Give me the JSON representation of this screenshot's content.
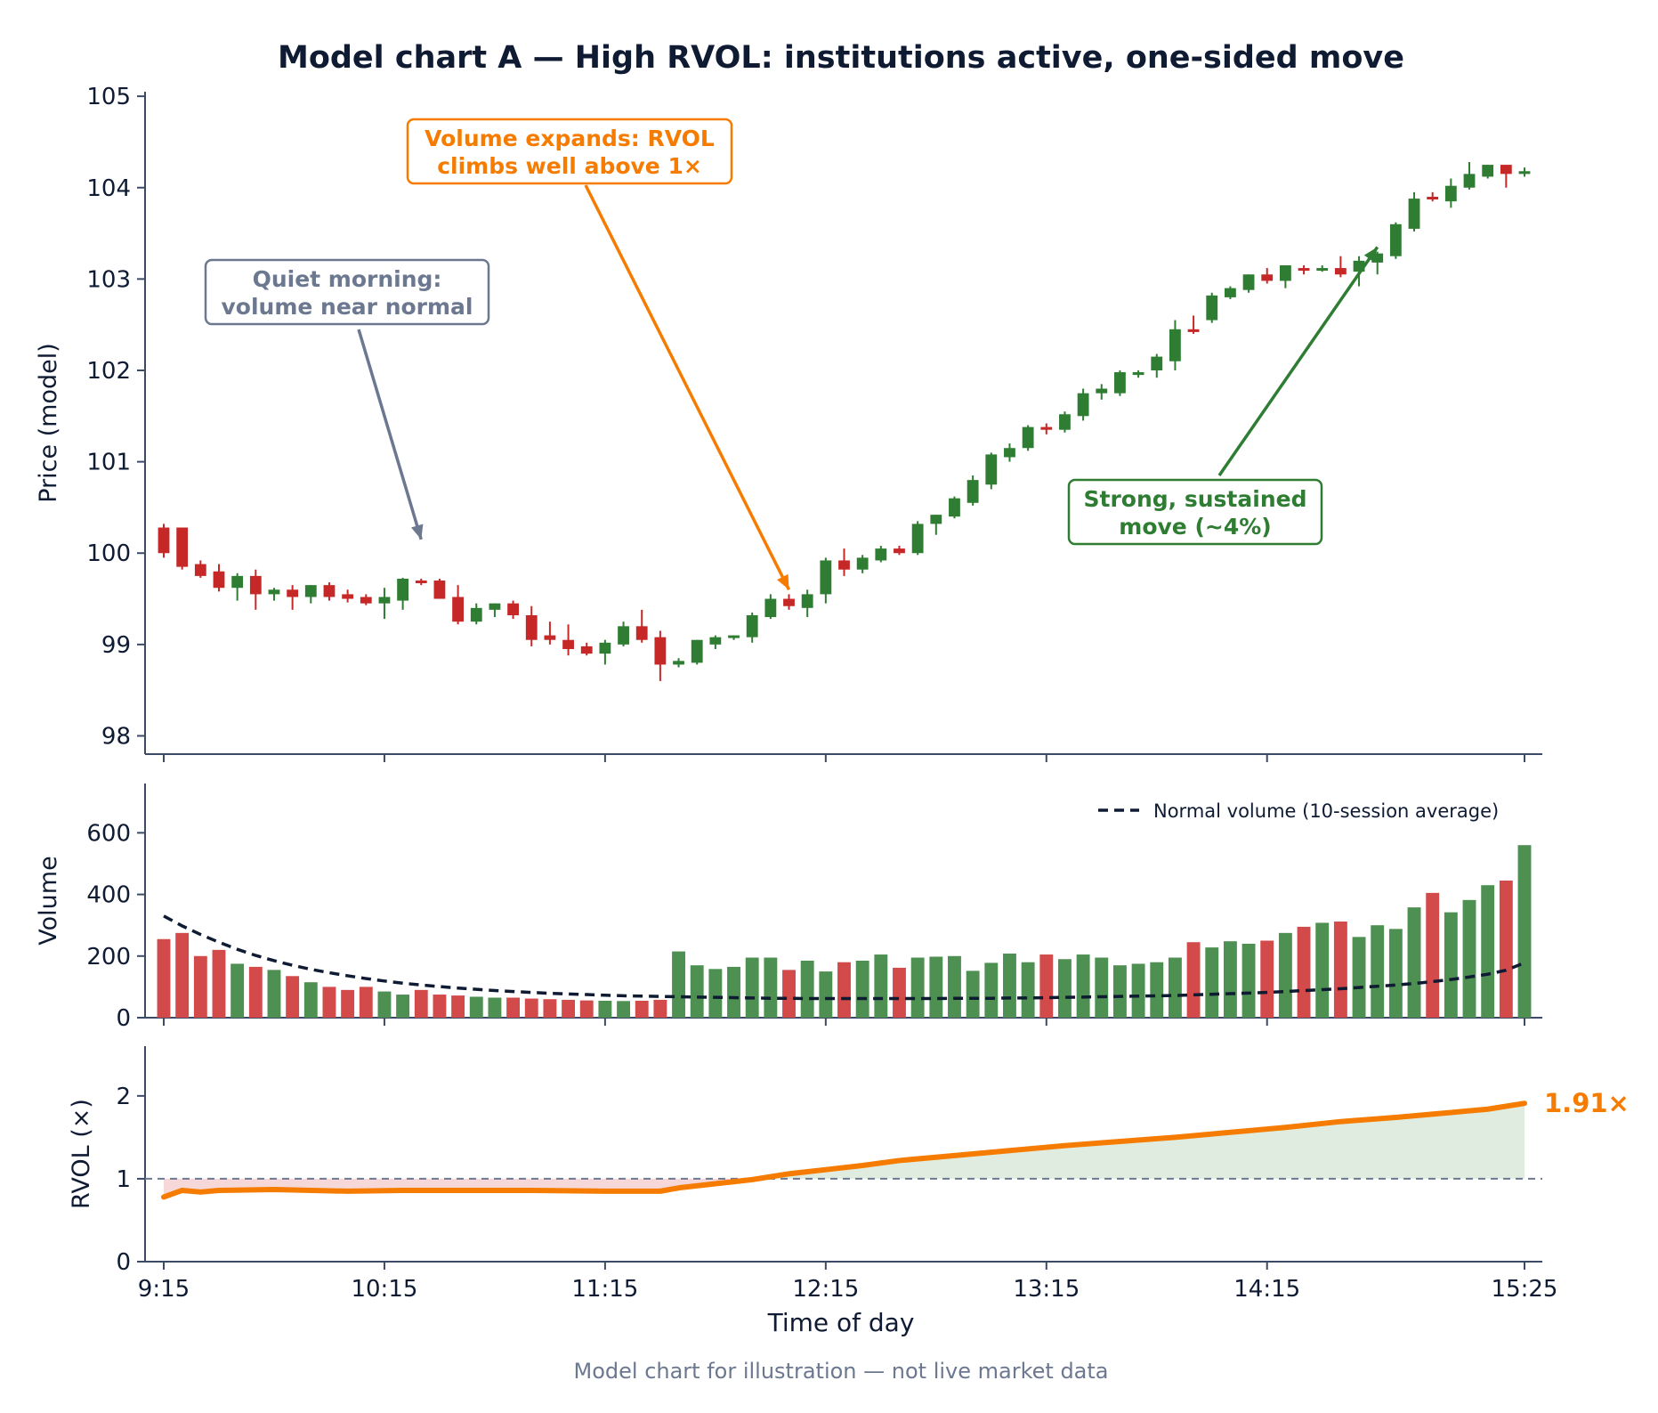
{
  "chart_data": {
    "type": "candlestick",
    "title": "Model chart A — High RVOL: institutions active, one-sided move",
    "footer": "Model chart for illustration — not live market data",
    "xlabel": "Time of day",
    "x_tick_labels": [
      "9:15",
      "10:15",
      "11:15",
      "12:15",
      "13:15",
      "14:15",
      "15:25"
    ],
    "x_tick_index": [
      0,
      12,
      24,
      36,
      48,
      60,
      74
    ],
    "colors": {
      "up": "#2e7d32",
      "down": "#c62828",
      "rvol": "#f57c00",
      "normal": "#0f1b33",
      "axis": "#3d4a66",
      "gray": "#6b7890"
    },
    "price": {
      "ylabel": "Price (model)",
      "ylim": [
        97.8,
        105.05
      ],
      "yticks": [
        98,
        99,
        100,
        101,
        102,
        103,
        104,
        105
      ],
      "candles": [
        [
          100.28,
          100.32,
          99.95,
          100.0
        ],
        [
          100.28,
          100.28,
          99.82,
          99.85
        ],
        [
          99.88,
          99.92,
          99.73,
          99.75
        ],
        [
          99.8,
          99.88,
          99.58,
          99.62
        ],
        [
          99.62,
          99.78,
          99.48,
          99.75
        ],
        [
          99.75,
          99.82,
          99.38,
          99.55
        ],
        [
          99.55,
          99.62,
          99.48,
          99.6
        ],
        [
          99.6,
          99.65,
          99.38,
          99.52
        ],
        [
          99.52,
          99.65,
          99.45,
          99.65
        ],
        [
          99.65,
          99.68,
          99.48,
          99.52
        ],
        [
          99.55,
          99.6,
          99.46,
          99.5
        ],
        [
          99.52,
          99.55,
          99.43,
          99.45
        ],
        [
          99.45,
          99.62,
          99.28,
          99.52
        ],
        [
          99.48,
          99.73,
          99.38,
          99.72
        ],
        [
          99.7,
          99.72,
          99.65,
          99.68
        ],
        [
          99.7,
          99.72,
          99.5,
          99.5
        ],
        [
          99.52,
          99.65,
          99.22,
          99.25
        ],
        [
          99.25,
          99.45,
          99.22,
          99.4
        ],
        [
          99.38,
          99.45,
          99.3,
          99.45
        ],
        [
          99.45,
          99.48,
          99.28,
          99.32
        ],
        [
          99.32,
          99.42,
          98.98,
          99.05
        ],
        [
          99.1,
          99.25,
          99.0,
          99.05
        ],
        [
          99.05,
          99.22,
          98.88,
          98.95
        ],
        [
          98.98,
          99.02,
          98.88,
          98.9
        ],
        [
          98.9,
          99.05,
          98.78,
          99.02
        ],
        [
          99.0,
          99.25,
          98.98,
          99.2
        ],
        [
          99.2,
          99.38,
          99.02,
          99.05
        ],
        [
          99.08,
          99.15,
          98.6,
          98.78
        ],
        [
          98.78,
          98.85,
          98.75,
          98.82
        ],
        [
          98.8,
          99.05,
          98.78,
          99.05
        ],
        [
          99.0,
          99.1,
          98.95,
          99.08
        ],
        [
          99.08,
          99.1,
          99.05,
          99.1
        ],
        [
          99.08,
          99.35,
          99.02,
          99.32
        ],
        [
          99.3,
          99.55,
          99.28,
          99.5
        ],
        [
          99.5,
          99.55,
          99.38,
          99.42
        ],
        [
          99.4,
          99.6,
          99.3,
          99.55
        ],
        [
          99.55,
          99.95,
          99.45,
          99.92
        ],
        [
          99.92,
          100.05,
          99.75,
          99.82
        ],
        [
          99.82,
          99.98,
          99.78,
          99.95
        ],
        [
          99.92,
          100.08,
          99.9,
          100.05
        ],
        [
          100.05,
          100.08,
          99.98,
          100.0
        ],
        [
          100.0,
          100.35,
          99.98,
          100.32
        ],
        [
          100.32,
          100.42,
          100.2,
          100.42
        ],
        [
          100.4,
          100.62,
          100.38,
          100.6
        ],
        [
          100.55,
          100.85,
          100.52,
          100.8
        ],
        [
          100.75,
          101.1,
          100.7,
          101.08
        ],
        [
          101.05,
          101.2,
          101.0,
          101.15
        ],
        [
          101.15,
          101.4,
          101.12,
          101.38
        ],
        [
          101.38,
          101.42,
          101.3,
          101.35
        ],
        [
          101.35,
          101.55,
          101.32,
          101.52
        ],
        [
          101.5,
          101.8,
          101.45,
          101.75
        ],
        [
          101.75,
          101.85,
          101.68,
          101.8
        ],
        [
          101.75,
          102.0,
          101.72,
          101.98
        ],
        [
          101.95,
          102.0,
          101.92,
          101.98
        ],
        [
          102.0,
          102.18,
          101.92,
          102.15
        ],
        [
          102.1,
          102.55,
          102.0,
          102.45
        ],
        [
          102.45,
          102.6,
          102.4,
          102.42
        ],
        [
          102.55,
          102.85,
          102.52,
          102.82
        ],
        [
          102.8,
          102.92,
          102.78,
          102.9
        ],
        [
          102.88,
          103.05,
          102.85,
          103.05
        ],
        [
          103.05,
          103.12,
          102.95,
          102.98
        ],
        [
          102.98,
          103.15,
          102.9,
          103.15
        ],
        [
          103.12,
          103.15,
          103.05,
          103.1
        ],
        [
          103.1,
          103.15,
          103.08,
          103.12
        ],
        [
          103.12,
          103.25,
          103.02,
          103.05
        ],
        [
          103.08,
          103.25,
          102.92,
          103.2
        ],
        [
          103.18,
          103.3,
          103.05,
          103.28
        ],
        [
          103.25,
          103.62,
          103.22,
          103.6
        ],
        [
          103.55,
          103.95,
          103.52,
          103.88
        ],
        [
          103.9,
          103.95,
          103.85,
          103.88
        ],
        [
          103.85,
          104.1,
          103.78,
          104.02
        ],
        [
          104.0,
          104.28,
          103.98,
          104.15
        ],
        [
          104.12,
          104.25,
          104.1,
          104.25
        ],
        [
          104.25,
          104.25,
          104.0,
          104.15
        ],
        [
          104.15,
          104.22,
          104.12,
          104.18
        ]
      ],
      "annotations": [
        {
          "text1": "Quiet morning:",
          "text2": "volume near normal",
          "color": "gray",
          "arrow_to_index": 14,
          "arrow_to_price": 100.15
        },
        {
          "text1": "Volume expands: RVOL",
          "text2": "climbs well above 1×",
          "color": "rvol",
          "arrow_to_index": 34,
          "arrow_to_price": 99.6
        },
        {
          "text1": "Strong, sustained",
          "text2": "move (~4%)",
          "color": "up",
          "arrow_to_index": 66,
          "arrow_to_price": 103.35
        }
      ]
    },
    "volume": {
      "ylabel": "Volume",
      "ylim": [
        0,
        760
      ],
      "yticks": [
        0,
        200,
        400,
        600
      ],
      "legend": "Normal volume (10-session average)",
      "legend_position": "top-right",
      "values": [
        255,
        275,
        200,
        220,
        175,
        165,
        155,
        135,
        115,
        100,
        90,
        100,
        85,
        75,
        90,
        75,
        72,
        68,
        65,
        65,
        62,
        60,
        58,
        56,
        55,
        54,
        55,
        58,
        215,
        170,
        158,
        165,
        195,
        195,
        155,
        185,
        150,
        180,
        185,
        205,
        162,
        195,
        198,
        200,
        152,
        178,
        208,
        180,
        205,
        190,
        205,
        195,
        170,
        175,
        180,
        195,
        245,
        228,
        248,
        240,
        250,
        275,
        295,
        308,
        312,
        262,
        300,
        288,
        358,
        405,
        342,
        382,
        430,
        445,
        560
      ],
      "normal": [
        330,
        298,
        270,
        245,
        222,
        202,
        185,
        170,
        157,
        146,
        136,
        127,
        119,
        112,
        106,
        101,
        96,
        92,
        88,
        85,
        82,
        79,
        77,
        75,
        73,
        71,
        70,
        69,
        68,
        67,
        66,
        65,
        64,
        63,
        63,
        62,
        62,
        62,
        62,
        62,
        62,
        62,
        62,
        63,
        63,
        63,
        64,
        64,
        65,
        66,
        67,
        68,
        69,
        70,
        71,
        72,
        74,
        76,
        78,
        80,
        82,
        85,
        88,
        91,
        94,
        98,
        102,
        106,
        111,
        117,
        124,
        132,
        141,
        154,
        178
      ]
    },
    "rvol": {
      "ylabel": "RVOL (×)",
      "ylim": [
        0,
        2.6
      ],
      "yticks": [
        0,
        1,
        2
      ],
      "reference": 1,
      "last_label": "1.91×",
      "x": [
        0,
        1,
        2,
        3,
        6,
        10,
        13,
        16,
        20,
        24,
        27,
        28,
        30,
        32,
        34,
        36,
        38,
        40,
        43,
        46,
        49,
        52,
        55,
        58,
        61,
        64,
        67,
        70,
        72,
        74
      ],
      "values": [
        0.78,
        0.86,
        0.84,
        0.86,
        0.87,
        0.85,
        0.86,
        0.86,
        0.86,
        0.85,
        0.85,
        0.89,
        0.94,
        0.99,
        1.06,
        1.11,
        1.16,
        1.22,
        1.28,
        1.34,
        1.4,
        1.45,
        1.5,
        1.56,
        1.62,
        1.69,
        1.74,
        1.8,
        1.84,
        1.91
      ]
    }
  }
}
